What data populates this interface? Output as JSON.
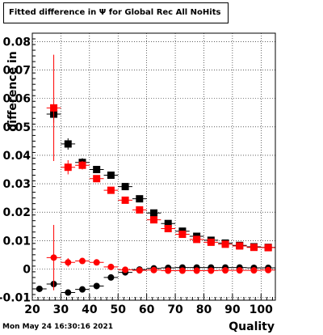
{
  "title": "Fitted difference in  Ψ  for Global Rec All NoHits",
  "timestamp": "Mon May 24 16:30:16 2021",
  "chart_data": {
    "type": "scatter",
    "title": "Fitted difference in  Ψ  for Global Rec All NoHits",
    "xlabel": "Quality",
    "ylabel": "difference in",
    "xlim": [
      20,
      105
    ],
    "ylim": [
      -0.011,
      0.083
    ],
    "grid": true,
    "x_ticks": [
      20,
      30,
      40,
      50,
      60,
      70,
      80,
      90,
      100
    ],
    "y_ticks": [
      -0.01,
      0,
      0.01,
      0.02,
      0.03,
      0.04,
      0.05,
      0.06,
      0.07,
      0.08
    ],
    "x_tick_labels": [
      "20",
      "30",
      "40",
      "50",
      "60",
      "70",
      "80",
      "90",
      "100"
    ],
    "y_tick_labels": [
      "-0.01",
      "0",
      "0.01",
      "0.02",
      "0.03",
      "0.04",
      "0.05",
      "0.06",
      "0.07",
      "0.08"
    ],
    "series": [
      {
        "marker": "square",
        "color": "#000000",
        "x": [
          27.5,
          32.5,
          37.5,
          42.5,
          47.5,
          52.5,
          57.5,
          62.5,
          67.5,
          72.5,
          77.5,
          82.5,
          87.5,
          92.5,
          97.5,
          102.5
        ],
        "y": [
          0.0545,
          0.044,
          0.0375,
          0.035,
          0.033,
          0.029,
          0.0247,
          0.0197,
          0.016,
          0.0133,
          0.0115,
          0.0101,
          0.0091,
          0.0083,
          0.0078,
          0.0076
        ],
        "yerr": [
          0.003,
          0.002,
          0.0015,
          0.001,
          0.0008,
          0.0007,
          0.0006,
          0.0005,
          0.0005,
          0.0004,
          0.0004,
          0.0004,
          0.0004,
          0.0004,
          0.0004,
          0.0004
        ]
      },
      {
        "marker": "square",
        "color": "#ff0000",
        "x": [
          27.5,
          32.5,
          37.5,
          42.5,
          47.5,
          52.5,
          57.5,
          62.5,
          67.5,
          72.5,
          77.5,
          82.5,
          87.5,
          92.5,
          97.5,
          102.5
        ],
        "y": [
          0.0567,
          0.0358,
          0.0365,
          0.0318,
          0.0277,
          0.0242,
          0.0208,
          0.0173,
          0.0142,
          0.0122,
          0.0104,
          0.0094,
          0.0087,
          0.0081,
          0.0076,
          0.0075
        ],
        "yerr": [
          0.0187,
          0.0025,
          0.0015,
          0.001,
          0.0008,
          0.0007,
          0.0006,
          0.0005,
          0.0005,
          0.0004,
          0.0004,
          0.0004,
          0.0004,
          0.0004,
          0.0004,
          0.0004
        ]
      },
      {
        "marker": "circle",
        "color": "#000000",
        "x": [
          22.5,
          27.5,
          32.5,
          37.5,
          42.5,
          47.5,
          52.5,
          57.5,
          62.5,
          67.5,
          72.5,
          77.5,
          82.5,
          87.5,
          92.5,
          97.5,
          102.5
        ],
        "y": [
          -0.007,
          -0.0053,
          -0.0083,
          -0.0072,
          -0.006,
          -0.003,
          -0.0012,
          -0.0002,
          0.0002,
          0.0004,
          0.0005,
          0.0005,
          0.0005,
          0.0005,
          0.0005,
          0.0004,
          0.0004
        ],
        "yerr": [
          0.0006,
          0.0012,
          0.0008,
          0.0006,
          0.0005,
          0.0004,
          0.0003,
          0.0003,
          0.0002,
          0.0002,
          0.0002,
          0.0002,
          0.0002,
          0.0002,
          0.0002,
          0.0002,
          0.0002
        ]
      },
      {
        "marker": "circle",
        "color": "#ff0000",
        "x": [
          27.5,
          32.5,
          37.5,
          42.5,
          47.5,
          52.5,
          57.5,
          62.5,
          67.5,
          72.5,
          77.5,
          82.5,
          87.5,
          92.5,
          97.5,
          102.5
        ],
        "y": [
          0.004,
          0.0023,
          0.0028,
          0.0023,
          0.0007,
          -0.0003,
          -0.0005,
          -0.0004,
          -0.0006,
          -0.0006,
          -0.0006,
          -0.0006,
          -0.0005,
          -0.0005,
          -0.0005,
          -0.0004
        ],
        "yerr": [
          0.0115,
          0.0015,
          0.0008,
          0.0006,
          0.0004,
          0.0004,
          0.0003,
          0.0003,
          0.0002,
          0.0002,
          0.0002,
          0.0002,
          0.0002,
          0.0002,
          0.0002,
          0.0002
        ]
      }
    ]
  }
}
